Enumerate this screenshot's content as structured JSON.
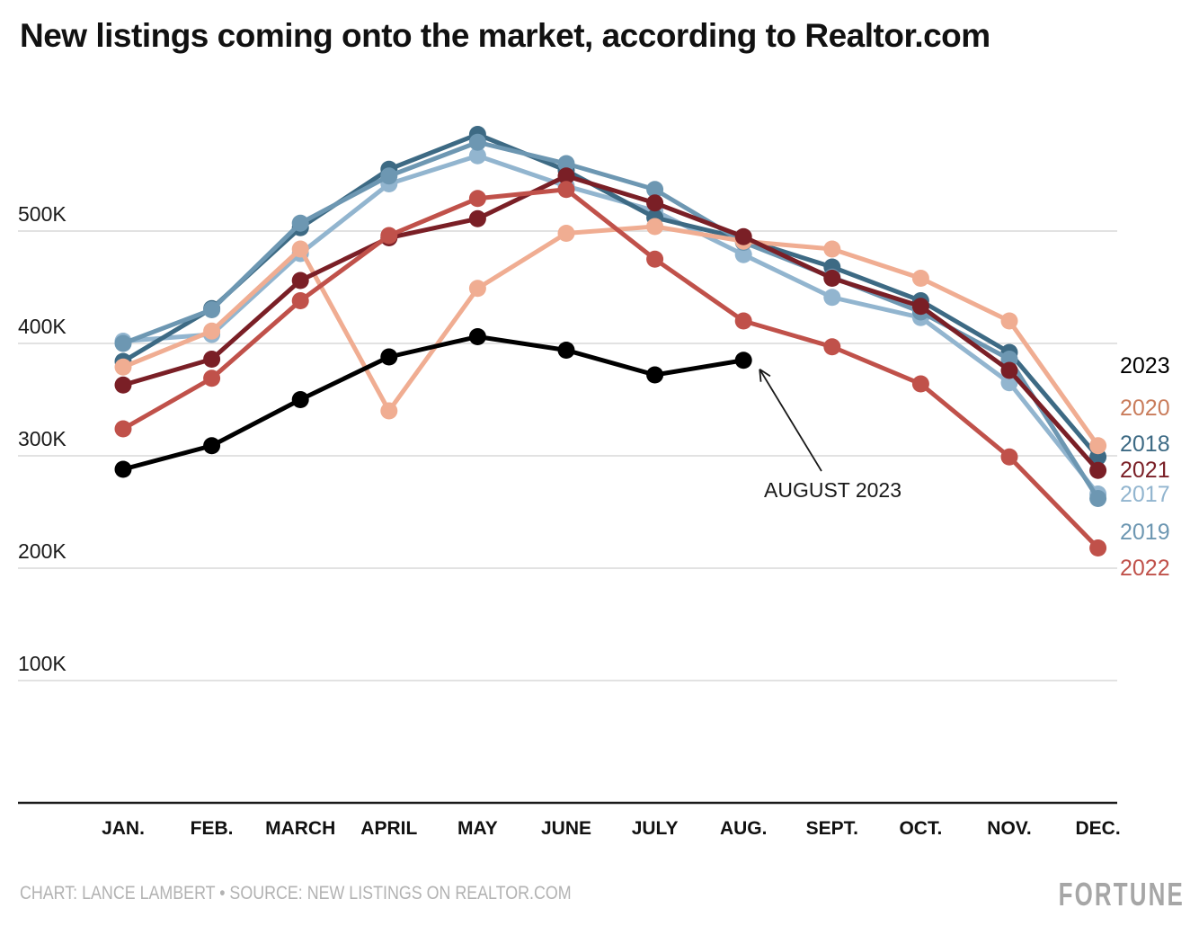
{
  "title": "New listings coming onto the market, according to Realtor.com",
  "footer": {
    "credit": "CHART: LANCE LAMBERT • SOURCE: NEW LISTINGS ON REALTOR.COM",
    "logo": "FORTUNE"
  },
  "annotation": {
    "label": "AUGUST 2023"
  },
  "chart_data": {
    "type": "line",
    "title": "New listings coming onto the market, according to Realtor.com",
    "unit": "listings (thousands)",
    "categories": [
      "JAN.",
      "FEB.",
      "MARCH",
      "APRIL",
      "MAY",
      "JUNE",
      "JULY",
      "AUG.",
      "SEPT.",
      "OCT.",
      "NOV.",
      "DEC."
    ],
    "y_tick_labels": [
      "500K",
      "400K",
      "300K",
      "200K",
      "100K"
    ],
    "y_tick_values": [
      500,
      400,
      300,
      200,
      100
    ],
    "ylim": [
      0,
      600
    ],
    "grid": "horizontal",
    "legend_position": "right",
    "legend_order": [
      "2023",
      "2020",
      "2018",
      "2021",
      "2017",
      "2019",
      "2022"
    ],
    "series": [
      {
        "name": "2017",
        "color": "#92b5cf",
        "label_color": "#92b5cf",
        "values": [
          402,
          408,
          480,
          542,
          567,
          540,
          518,
          479,
          441,
          423,
          365,
          266
        ]
      },
      {
        "name": "2018",
        "color": "#3d6a84",
        "label_color": "#3d6a84",
        "values": [
          384,
          431,
          503,
          555,
          586,
          554,
          512,
          493,
          468,
          438,
          392,
          299
        ]
      },
      {
        "name": "2019",
        "color": "#6d97b2",
        "label_color": "#6d97b2",
        "values": [
          400,
          430,
          507,
          549,
          579,
          560,
          537,
          490,
          459,
          428,
          386,
          262
        ]
      },
      {
        "name": "2020",
        "color": "#f0ad92",
        "label_color": "#c97c5b",
        "values": [
          379,
          411,
          484,
          340,
          449,
          498,
          504,
          491,
          484,
          458,
          420,
          309
        ]
      },
      {
        "name": "2021",
        "color": "#7a1f26",
        "label_color": "#7a1f26",
        "values": [
          363,
          386,
          456,
          494,
          511,
          549,
          525,
          495,
          458,
          433,
          376,
          287
        ]
      },
      {
        "name": "2022",
        "color": "#c0514a",
        "label_color": "#c0514a",
        "values": [
          324,
          369,
          438,
          496,
          529,
          537,
          475,
          420,
          397,
          364,
          299,
          218
        ]
      },
      {
        "name": "2023",
        "color": "#000000",
        "label_color": "#000000",
        "values": [
          288,
          309,
          350,
          388,
          406,
          394,
          372,
          385,
          null,
          null,
          null,
          null
        ]
      }
    ],
    "annotations": [
      {
        "text": "AUGUST 2023",
        "points_to": {
          "series": "2023",
          "category": "AUG.",
          "value": 385
        }
      }
    ]
  }
}
